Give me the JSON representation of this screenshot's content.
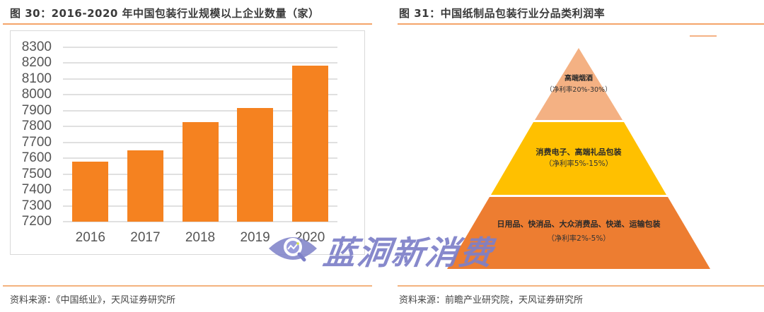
{
  "left_figure": {
    "title": "图 30：2016-2020 年中国包装行业规模以上企业数量（家）",
    "source": "资料来源：《中国纸业》，天风证券研究所"
  },
  "right_figure": {
    "title": "图 31：中国纸制品包装行业分品类利润率",
    "source": "资料来源：前瞻产业研究院，天风证券研究所",
    "pyramid": {
      "levels": [
        {
          "name": "高端烟酒",
          "margin": "（净利率20%-30%）",
          "color": "#f4b183"
        },
        {
          "name": "消费电子、高端礼品包装",
          "margin": "（净利率5%-15%）",
          "color": "#ffc000"
        },
        {
          "name": "日用品、快消品、大众消费品、快递、运输包装",
          "margin": "（净利率2%-5%）",
          "color": "#ed7d31"
        }
      ]
    }
  },
  "watermark": {
    "text": "蓝洞新消费",
    "color": "#7d80c8"
  },
  "chart_data": [
    {
      "type": "bar",
      "title": "2016-2020 年中国包装行业规模以上企业数量（家）",
      "categories": [
        "2016",
        "2017",
        "2018",
        "2019",
        "2020"
      ],
      "values": [
        7580,
        7650,
        7830,
        7915,
        8185
      ],
      "xlabel": "",
      "ylabel": "",
      "ylim": [
        7200,
        8300
      ],
      "yticks": [
        7200,
        7300,
        7400,
        7500,
        7600,
        7700,
        7800,
        7900,
        8000,
        8100,
        8200,
        8300
      ],
      "grid": true,
      "color": "#f58220",
      "legend": null
    },
    {
      "type": "pyramid",
      "title": "中国纸制品包装行业分品类利润率",
      "levels_top_to_bottom": [
        {
          "category": "高端烟酒",
          "net_margin_range": "20%-30%"
        },
        {
          "category": "消费电子、高端礼品包装",
          "net_margin_range": "5%-15%"
        },
        {
          "category": "日用品、快消品、大众消费品、快递、运输包装",
          "net_margin_range": "2%-5%"
        }
      ]
    }
  ]
}
